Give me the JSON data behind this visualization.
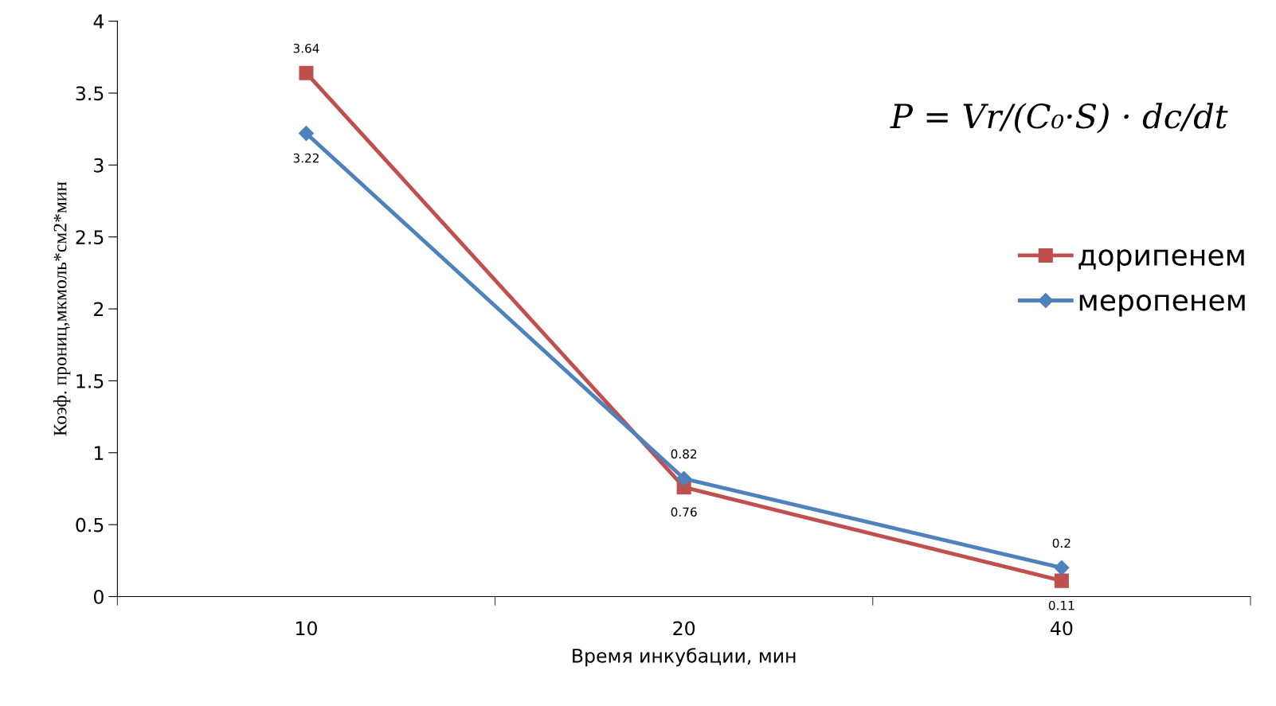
{
  "chart_data": {
    "type": "line",
    "xlabel": "Время инкубации, мин",
    "ylabel": "Коэф. прониц,мкмоль*см2*мин",
    "categories": [
      "10",
      "20",
      "40"
    ],
    "series": [
      {
        "name": "дорипенем",
        "color": "#c0504d",
        "marker": "square",
        "values": [
          3.64,
          0.76,
          0.11
        ]
      },
      {
        "name": "меропенем",
        "color": "#4f81bd",
        "marker": "diamond",
        "values": [
          3.22,
          0.82,
          0.2
        ]
      }
    ],
    "ylim": [
      0,
      4
    ],
    "yticks": [
      0,
      0.5,
      1,
      1.5,
      2,
      2.5,
      3,
      3.5,
      4
    ],
    "data_labels": true,
    "legend": "right",
    "grid": false,
    "annotations": [
      "P = Vr/(C₀·S) · dc/dt"
    ]
  }
}
